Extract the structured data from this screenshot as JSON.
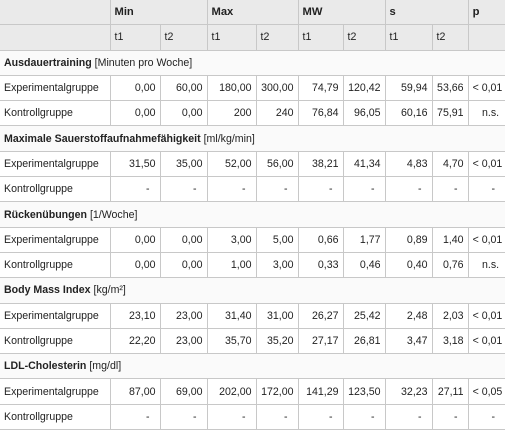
{
  "header": {
    "groups": [
      "Min",
      "Max",
      "MW",
      "s",
      "p"
    ],
    "sub": [
      "t1",
      "t2"
    ]
  },
  "sections": [
    {
      "title": "Ausdauertraining",
      "unit": "[Minuten pro Woche]",
      "rows": [
        {
          "label": "Experimentalgruppe",
          "values": [
            "0,00",
            "60,00",
            "180,00",
            "300,00",
            "74,79",
            "120,42",
            "59,94",
            "53,66"
          ],
          "p": "< 0,01"
        },
        {
          "label": "Kontrollgruppe",
          "values": [
            "0,00",
            "0,00",
            "200",
            "240",
            "76,84",
            "96,05",
            "60,16",
            "75,91"
          ],
          "p": "n.s."
        }
      ]
    },
    {
      "title": "Maximale Sauerstoffaufnahmefähigkeit",
      "unit": "[ml/kg/min]",
      "rows": [
        {
          "label": "Experimentalgruppe",
          "values": [
            "31,50",
            "35,00",
            "52,00",
            "56,00",
            "38,21",
            "41,34",
            "4,83",
            "4,70"
          ],
          "p": "< 0,01"
        },
        {
          "label": "Kontrollgruppe",
          "values": [
            "-",
            "-",
            "-",
            "-",
            "-",
            "-",
            "-",
            "-"
          ],
          "p": "-"
        }
      ]
    },
    {
      "title": "Rückenübungen",
      "unit": "[1/Woche]",
      "rows": [
        {
          "label": "Experimentalgruppe",
          "values": [
            "0,00",
            "0,00",
            "3,00",
            "5,00",
            "0,66",
            "1,77",
            "0,89",
            "1,40"
          ],
          "p": "< 0,01"
        },
        {
          "label": "Kontrollgruppe",
          "values": [
            "0,00",
            "0,00",
            "1,00",
            "3,00",
            "0,33",
            "0,46",
            "0,40",
            "0,76"
          ],
          "p": "n.s."
        }
      ]
    },
    {
      "title": "Body Mass Index",
      "unit": "[kg/m²]",
      "rows": [
        {
          "label": "Experimentalgruppe",
          "values": [
            "23,10",
            "23,00",
            "31,40",
            "31,00",
            "26,27",
            "25,42",
            "2,48",
            "2,03"
          ],
          "p": "< 0,01"
        },
        {
          "label": "Kontrollgruppe",
          "values": [
            "22,20",
            "23,00",
            "35,70",
            "35,20",
            "27,17",
            "26,81",
            "3,47",
            "3,18"
          ],
          "p": "< 0,01"
        }
      ]
    },
    {
      "title": "LDL-Cholesterin",
      "unit": "[mg/dl]",
      "rows": [
        {
          "label": "Experimentalgruppe",
          "values": [
            "87,00",
            "69,00",
            "202,00",
            "172,00",
            "141,29",
            "123,50",
            "32,23",
            "27,11"
          ],
          "p": "< 0,05"
        },
        {
          "label": "Kontrollgruppe",
          "values": [
            "-",
            "-",
            "-",
            "-",
            "-",
            "-",
            "-",
            "-"
          ],
          "p": "-"
        }
      ]
    }
  ]
}
